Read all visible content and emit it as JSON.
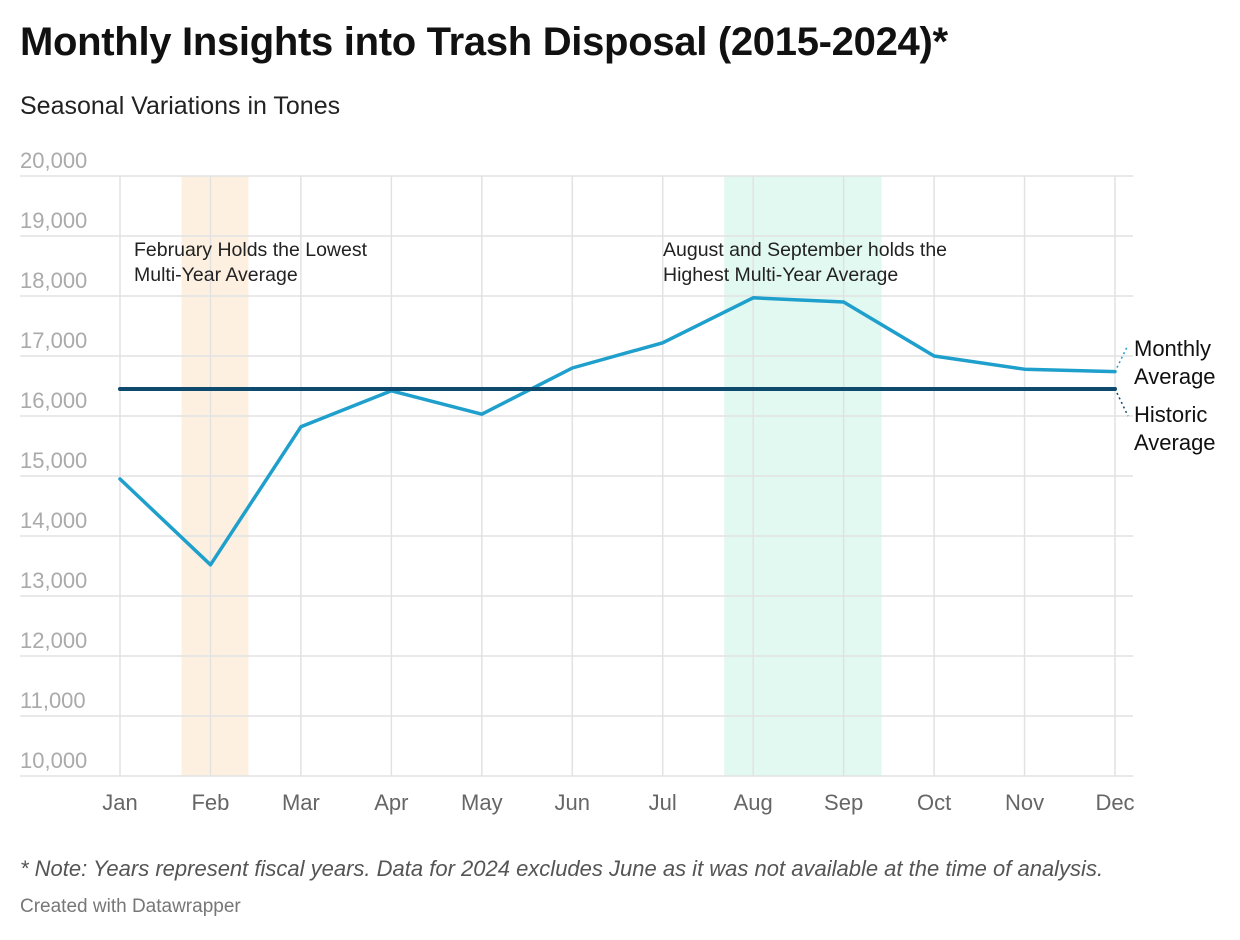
{
  "title": "Monthly Insights into Trash Disposal (2015-2024)*",
  "subtitle": "Seasonal Variations in Tones",
  "note": "* Note: Years represent fiscal years. Data for 2024 excludes June as it was not available at the time of analysis.",
  "credit": "Created with Datawrapper",
  "colors": {
    "monthly_line": "#1f9fcb",
    "historic_line": "#0d4a6e",
    "feb_band": "#fdf0e1",
    "aug_sep_band": "#e2f9f2",
    "grid": "#e2e2e2",
    "tick_text": "#aaaaaa",
    "month_text": "#666666"
  },
  "chart_data": {
    "type": "line",
    "categories": [
      "Jan",
      "Feb",
      "Mar",
      "Apr",
      "May",
      "Jun",
      "Jul",
      "Aug",
      "Sep",
      "Oct",
      "Nov",
      "Dec"
    ],
    "series": [
      {
        "name": "Monthly Average",
        "values": [
          14950,
          13520,
          15820,
          16420,
          16030,
          16800,
          17220,
          17970,
          17900,
          17000,
          16780,
          16740
        ]
      },
      {
        "name": "Historic Average",
        "values": [
          16450,
          16450,
          16450,
          16450,
          16450,
          16450,
          16450,
          16450,
          16450,
          16450,
          16450,
          16450
        ]
      }
    ],
    "y_ticks": [
      "10,000",
      "11,000",
      "12,000",
      "13,000",
      "14,000",
      "15,000",
      "16,000",
      "17,000",
      "18,000",
      "19,000",
      "20,000"
    ],
    "ylim": [
      10000,
      20000
    ],
    "grid": true,
    "highlight_bands": [
      {
        "from": "Feb",
        "to": "Feb",
        "label_lines": [
          "February Holds the Lowest",
          "Multi-Year Average"
        ]
      },
      {
        "from": "Aug",
        "to": "Sep",
        "label_lines": [
          "August and September holds the",
          "Highest Multi-Year Average"
        ]
      }
    ],
    "line_labels": [
      {
        "series": "Monthly Average",
        "lines": [
          "Monthly",
          "Average"
        ]
      },
      {
        "series": "Historic Average",
        "lines": [
          "Historic",
          "Average"
        ]
      }
    ],
    "xlabel": "",
    "ylabel": ""
  }
}
